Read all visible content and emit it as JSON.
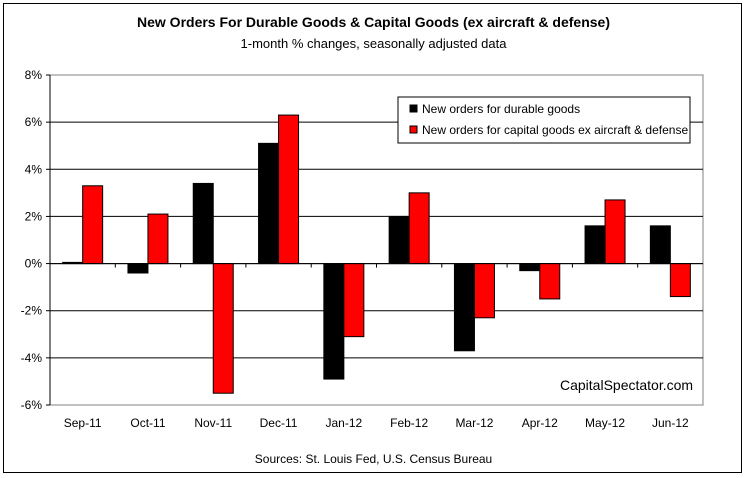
{
  "chart_data": {
    "type": "bar",
    "title": "New Orders For Durable Goods & Capital Goods (ex aircraft & defense)",
    "subtitle": "1-month % changes, seasonally adjusted data",
    "source": "Sources: St. Louis Fed, U.S. Census Bureau",
    "watermark": "CapitalSpectator.com",
    "categories": [
      "Sep-11",
      "Oct-11",
      "Nov-11",
      "Dec-11",
      "Jan-12",
      "Feb-12",
      "Mar-12",
      "Apr-12",
      "May-12",
      "Jun-12"
    ],
    "series": [
      {
        "name": "New orders for durable goods",
        "color": "#000000",
        "values": [
          0.05,
          -0.4,
          3.4,
          5.1,
          -4.9,
          2.0,
          -3.7,
          -0.3,
          1.6,
          1.6
        ]
      },
      {
        "name": "New orders for capital goods ex aircraft & defense",
        "color": "#ff0000",
        "values": [
          3.3,
          2.1,
          -5.5,
          6.3,
          -3.1,
          3.0,
          -2.3,
          -1.5,
          2.7,
          -1.4
        ]
      }
    ],
    "ylim": [
      -6,
      8
    ],
    "yticks": [
      8,
      6,
      4,
      2,
      0,
      -2,
      -4,
      -6
    ],
    "ytick_labels": [
      "8%",
      "6%",
      "4%",
      "2%",
      "0%",
      "-2%",
      "-4%",
      "-6%"
    ],
    "grid": true,
    "legend_position": "top-right"
  }
}
